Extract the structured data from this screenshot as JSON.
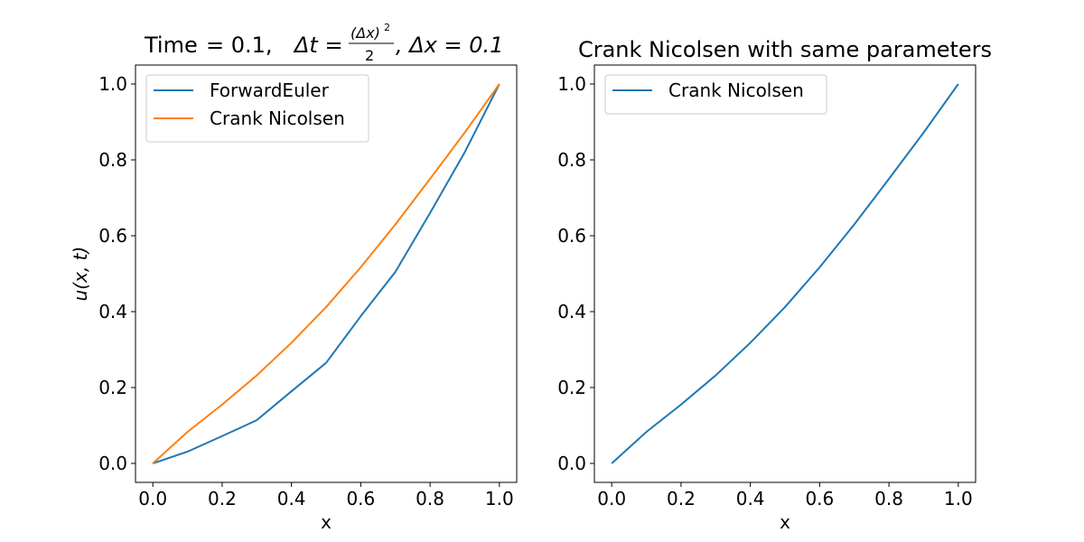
{
  "chart_data": [
    {
      "type": "line",
      "title": {
        "time_label": "Time",
        "time_value": "= 0.1,",
        "dt_symbol": "Δt =",
        "dt_numerator": "(Δx)",
        "dt_exponent": "2",
        "dt_denominator": "2",
        "dx_text": ", Δx = 0.1"
      },
      "xlabel": "x",
      "ylabel": "u(x, t)",
      "xlim": [
        -0.05,
        1.05
      ],
      "ylim": [
        -0.05,
        1.05
      ],
      "xticks": [
        "0.0",
        "0.2",
        "0.4",
        "0.6",
        "0.8",
        "1.0"
      ],
      "yticks": [
        "0.0",
        "0.2",
        "0.4",
        "0.6",
        "0.8",
        "1.0"
      ],
      "grid": false,
      "legend_position": "top-left",
      "series": [
        {
          "name": "ForwardEuler",
          "color": "#1f77b4",
          "x": [
            0.0,
            0.1,
            0.2,
            0.3,
            0.4,
            0.5,
            0.6,
            0.7,
            0.8,
            0.9,
            1.0
          ],
          "y": [
            0.0,
            0.031,
            0.072,
            0.114,
            0.19,
            0.265,
            0.388,
            0.505,
            0.66,
            0.82,
            1.0
          ]
        },
        {
          "name": "Crank Nicolsen",
          "color": "#ff7f0e",
          "x": [
            0.0,
            0.1,
            0.2,
            0.3,
            0.4,
            0.5,
            0.6,
            0.7,
            0.8,
            0.9,
            1.0
          ],
          "y": [
            0.0,
            0.083,
            0.155,
            0.232,
            0.318,
            0.412,
            0.517,
            0.63,
            0.75,
            0.872,
            1.0
          ]
        }
      ]
    },
    {
      "type": "line",
      "title": "Crank Nicolsen with same parameters",
      "xlabel": "x",
      "ylabel": "",
      "xlim": [
        -0.05,
        1.05
      ],
      "ylim": [
        -0.05,
        1.05
      ],
      "xticks": [
        "0.0",
        "0.2",
        "0.4",
        "0.6",
        "0.8",
        "1.0"
      ],
      "yticks": [
        "0.0",
        "0.2",
        "0.4",
        "0.6",
        "0.8",
        "1.0"
      ],
      "grid": false,
      "legend_position": "top-left",
      "series": [
        {
          "name": "Crank Nicolsen",
          "color": "#1f77b4",
          "x": [
            0.0,
            0.1,
            0.2,
            0.3,
            0.4,
            0.5,
            0.6,
            0.7,
            0.8,
            0.9,
            1.0
          ],
          "y": [
            0.0,
            0.083,
            0.155,
            0.232,
            0.318,
            0.412,
            0.517,
            0.63,
            0.75,
            0.872,
            1.0
          ]
        }
      ]
    }
  ]
}
